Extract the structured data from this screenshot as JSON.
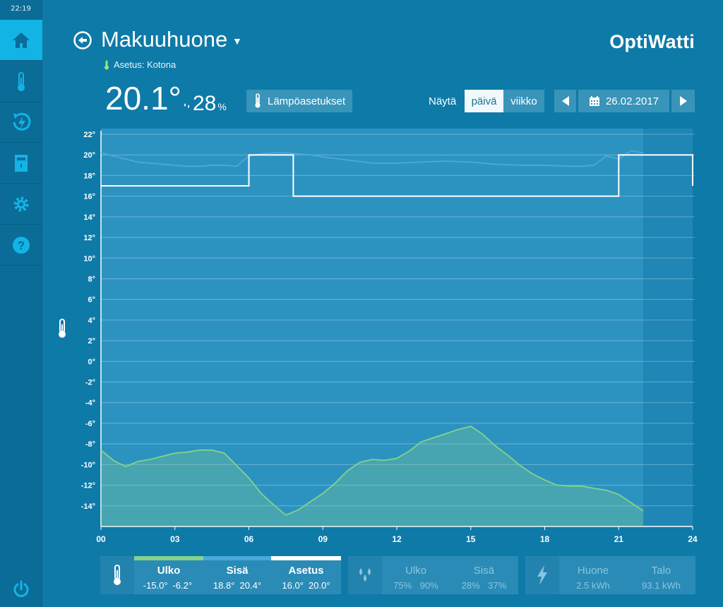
{
  "clock": "22:19",
  "sidebar": {
    "items": [
      {
        "icon": "home-icon",
        "active": true
      },
      {
        "icon": "thermometer-icon",
        "active": false
      },
      {
        "icon": "energy-cycle-icon",
        "active": false
      },
      {
        "icon": "device-icon",
        "active": false
      },
      {
        "icon": "gear-icon",
        "active": false
      },
      {
        "icon": "help-icon",
        "active": false
      }
    ],
    "power_icon": "power-icon"
  },
  "header": {
    "room": "Makuuhuone",
    "setting": "Asetus: Kotona",
    "brand": "OptiWatti"
  },
  "status": {
    "temperature": "20.1°",
    "humidity": "28",
    "humidity_unit": "%"
  },
  "controls": {
    "temp_settings": "Lämpöasetukset",
    "show_label": "Näytä",
    "day": "päivä",
    "week": "viikko",
    "date": "26.02.2017"
  },
  "colors": {
    "accent": "#12b4e6",
    "outdoor": "#86d28a",
    "indoor": "#4aa8de",
    "setpoint": "#ffffff"
  },
  "chart_data": {
    "type": "line",
    "x_ticks": [
      "00",
      "03",
      "06",
      "09",
      "12",
      "15",
      "18",
      "21",
      "24"
    ],
    "y_ticks": [
      "22°",
      "20°",
      "18°",
      "16°",
      "14°",
      "12°",
      "10°",
      "8°",
      "6°",
      "4°",
      "2°",
      "0°",
      "-2°",
      "-4°",
      "-6°",
      "-8°",
      "-10°",
      "-12°",
      "-14°"
    ],
    "xlim": [
      0,
      24
    ],
    "ylim": [
      -16,
      22
    ],
    "grid": true,
    "series": [
      {
        "name": "Sisä",
        "color": "#4aa8de",
        "x": [
          0,
          0.5,
          1,
          1.5,
          2,
          3,
          3.5,
          4,
          4.5,
          5,
          5.5,
          6,
          6.5,
          7,
          7.5,
          8,
          8.5,
          9,
          10,
          11,
          12,
          13,
          14,
          15,
          16,
          17,
          18,
          19,
          19.5,
          20,
          20.5,
          21,
          21.5,
          22
        ],
        "y": [
          20.2,
          19.9,
          19.6,
          19.3,
          19.2,
          19.0,
          18.9,
          18.9,
          19.0,
          19.0,
          18.9,
          19.9,
          20.1,
          20.2,
          20.2,
          20.1,
          20.0,
          19.8,
          19.5,
          19.2,
          19.2,
          19.3,
          19.4,
          19.3,
          19.1,
          19.0,
          19.0,
          18.9,
          18.9,
          19.0,
          19.9,
          19.6,
          20.4,
          20.2
        ]
      },
      {
        "name": "Asetus",
        "color": "#ffffff",
        "step": true,
        "x": [
          0,
          6,
          6,
          7.8,
          7.8,
          21,
          21,
          24,
          24
        ],
        "y": [
          17,
          17,
          20,
          20,
          16,
          16,
          20,
          20,
          17
        ]
      },
      {
        "name": "Ulko",
        "color": "#86d28a",
        "x": [
          0,
          0.5,
          1,
          1.5,
          2,
          3,
          3.5,
          4,
          4.5,
          5,
          6,
          6.5,
          7,
          7.5,
          8,
          8.5,
          9,
          9.5,
          10,
          10.5,
          11,
          11.5,
          12,
          12.5,
          13,
          13.5,
          14,
          14.5,
          15,
          15.5,
          16,
          16.5,
          17,
          17.5,
          18,
          18.5,
          19,
          19.5,
          20,
          20.5,
          21,
          21.5,
          22
        ],
        "y": [
          -8.6,
          -9.6,
          -10.2,
          -9.7,
          -9.5,
          -8.9,
          -8.8,
          -8.6,
          -8.6,
          -8.9,
          -11.3,
          -12.8,
          -13.9,
          -14.9,
          -14.4,
          -13.6,
          -12.8,
          -11.8,
          -10.6,
          -9.8,
          -9.5,
          -9.6,
          -9.4,
          -8.7,
          -7.8,
          -7.4,
          -7.0,
          -6.6,
          -6.3,
          -7.1,
          -8.2,
          -9.1,
          -10.1,
          -10.9,
          -11.5,
          -12.0,
          -12.1,
          -12.1,
          -12.3,
          -12.5,
          -12.9,
          -13.7,
          -14.5
        ]
      }
    ]
  },
  "legend": {
    "temp_group": {
      "icon": "thermometer-icon",
      "columns": [
        {
          "title": "Ulko",
          "min": "-15.0°",
          "max": "-6.2°",
          "color": "#86d28a"
        },
        {
          "title": "Sisä",
          "min": "18.8°",
          "max": "20.4°",
          "color": "#4aa8de"
        },
        {
          "title": "Asetus",
          "min": "16.0°",
          "max": "20.0°",
          "color": "#ffffff"
        }
      ]
    },
    "humidity_group": {
      "icon": "droplets-icon",
      "columns": [
        {
          "title": "Ulko",
          "min": "75%",
          "max": "90%"
        },
        {
          "title": "Sisä",
          "min": "28%",
          "max": "37%"
        }
      ]
    },
    "energy_group": {
      "icon": "lightning-icon",
      "columns": [
        {
          "title": "Huone",
          "value": "2.5 kWh"
        },
        {
          "title": "Talo",
          "value": "93.1 kWh"
        }
      ]
    }
  }
}
